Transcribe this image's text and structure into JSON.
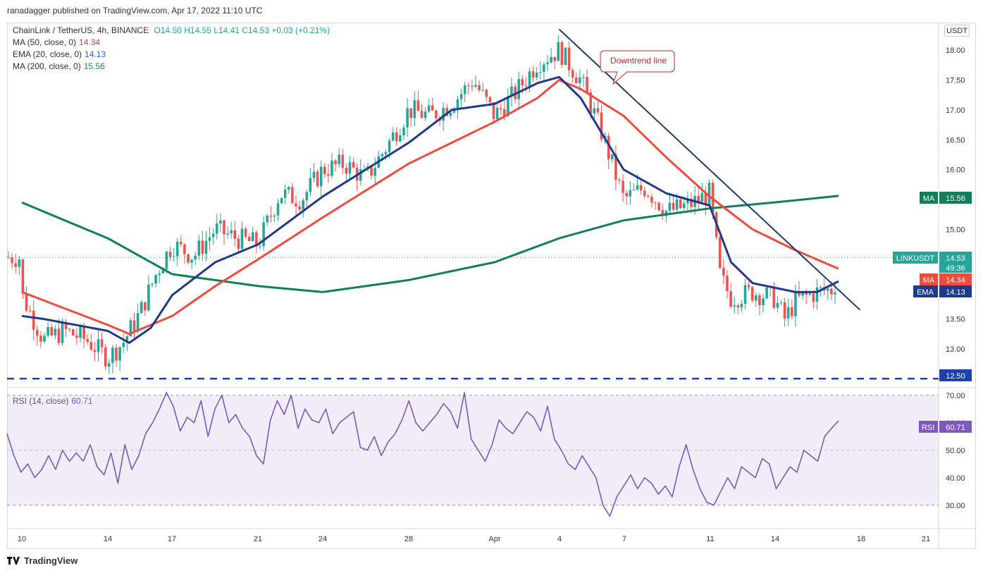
{
  "header": {
    "published": "ranadagger published on TradingView.com, Apr 17, 2022 11:10 UTC",
    "currency_button": "USDT"
  },
  "legend": {
    "symbol": "ChainLink / TetherUS, 4h, BINANCE",
    "ohlc": "O14.50  H14.55  L14.41  C14.53  +0.03 (+0.21%)",
    "ma50_label": "MA (50, close, 0)",
    "ma50_value": "14.34",
    "ema20_label": "EMA (20, close, 0)",
    "ema20_value": "14.13",
    "ma200_label": "MA (200, close, 0)",
    "ma200_value": "15.56",
    "rsi_label": "RSI (14, close)",
    "rsi_value": "60.71"
  },
  "annotation": {
    "text": "Downtrend line"
  },
  "badges": {
    "ma200": {
      "tag": "MA",
      "value": "15.56"
    },
    "price": {
      "tag": "LINKUSDT",
      "value": "14.53",
      "countdown": "49:36"
    },
    "ma50": {
      "tag": "MA",
      "value": "14.34"
    },
    "ema20": {
      "tag": "EMA",
      "value": "14.13"
    },
    "support": {
      "value": "12.50"
    },
    "rsi": {
      "tag": "RSI",
      "value": "60.71"
    }
  },
  "footer": {
    "brand": "TradingView"
  },
  "colors": {
    "up": "#26a69a",
    "down": "#ef5350",
    "ma50": "#ef4b3f",
    "ema20": "#1e3a8a",
    "ma200": "#137f5a",
    "rsi": "#7e57c2",
    "support": "#1e3fae"
  },
  "chart_data": [
    {
      "type": "candlestick",
      "symbol": "LINKUSDT",
      "timeframe": "4h",
      "x_ticks": [
        "10",
        "14",
        "17",
        "21",
        "24",
        "28",
        "Apr",
        "4",
        "7",
        "11",
        "14",
        "18",
        "21"
      ],
      "y_ticks": [
        "13.00",
        "13.50",
        "14.00",
        "14.50",
        "15.00",
        "15.50",
        "16.00",
        "16.50",
        "17.00",
        "17.50",
        "18.00"
      ],
      "ylim": [
        12.35,
        18.45
      ],
      "close_path": [
        [
          "10",
          13.9
        ],
        [
          "11",
          13.15
        ],
        [
          "12",
          13.3
        ],
        [
          "13",
          13.15
        ],
        [
          "14",
          12.85
        ],
        [
          "14.7",
          13.1
        ],
        [
          "15.5",
          13.6
        ],
        [
          "16.3",
          14.3
        ],
        [
          "17",
          14.75
        ],
        [
          "18",
          14.55
        ],
        [
          "19",
          15.0
        ],
        [
          "20",
          14.85
        ],
        [
          "21",
          14.75
        ],
        [
          "22",
          15.6
        ],
        [
          "23",
          15.5
        ],
        [
          "24",
          16.0
        ],
        [
          "25",
          16.1
        ],
        [
          "26",
          15.85
        ],
        [
          "27",
          16.4
        ],
        [
          "28",
          17.0
        ],
        [
          "29",
          16.9
        ],
        [
          "30",
          17.1
        ],
        [
          "31",
          17.5
        ],
        [
          "Apr 1",
          16.9
        ],
        [
          "Apr 2",
          17.3
        ],
        [
          "Apr 3",
          17.8
        ],
        [
          "Apr 4",
          18.0
        ],
        [
          "Apr 5",
          17.5
        ],
        [
          "Apr 6",
          16.6
        ],
        [
          "Apr 7",
          15.5
        ],
        [
          "Apr 8",
          15.7
        ],
        [
          "Apr 9",
          15.3
        ],
        [
          "Apr 10",
          15.4
        ],
        [
          "Apr 11",
          15.6
        ],
        [
          "Apr 11.5",
          14.2
        ],
        [
          "Apr 12",
          13.85
        ],
        [
          "Apr 13",
          13.95
        ],
        [
          "Apr 14",
          13.85
        ],
        [
          "Apr 14.5",
          13.5
        ],
        [
          "Apr 15",
          13.8
        ],
        [
          "Apr 16",
          13.95
        ],
        [
          "Apr 16.8",
          14.0
        ],
        [
          "Apr 17",
          14.53
        ]
      ],
      "ma50_path": [
        [
          "10",
          13.95
        ],
        [
          "14",
          13.4
        ],
        [
          "15",
          13.25
        ],
        [
          "17",
          13.55
        ],
        [
          "19",
          14.05
        ],
        [
          "21",
          14.5
        ],
        [
          "24",
          15.2
        ],
        [
          "28",
          16.1
        ],
        [
          "Apr 1",
          16.8
        ],
        [
          "Apr 3",
          17.2
        ],
        [
          "Apr 4",
          17.5
        ],
        [
          "Apr 5",
          17.35
        ],
        [
          "Apr 7",
          16.9
        ],
        [
          "Apr 9",
          16.2
        ],
        [
          "Apr 11",
          15.55
        ],
        [
          "Apr 13",
          15.0
        ],
        [
          "Apr 15",
          14.65
        ],
        [
          "Apr 17",
          14.34
        ]
      ],
      "ema20_path": [
        [
          "10",
          13.55
        ],
        [
          "11",
          13.5
        ],
        [
          "14",
          13.3
        ],
        [
          "15",
          13.1
        ],
        [
          "16",
          13.35
        ],
        [
          "17",
          13.9
        ],
        [
          "19",
          14.45
        ],
        [
          "21",
          14.75
        ],
        [
          "24",
          15.55
        ],
        [
          "28",
          16.45
        ],
        [
          "30",
          17.0
        ],
        [
          "Apr 1",
          17.1
        ],
        [
          "Apr 3",
          17.45
        ],
        [
          "Apr 4",
          17.55
        ],
        [
          "Apr 5",
          17.2
        ],
        [
          "Apr 7",
          16.0
        ],
        [
          "Apr 9",
          15.6
        ],
        [
          "Apr 11",
          15.4
        ],
        [
          "Apr 12",
          14.45
        ],
        [
          "Apr 13",
          14.1
        ],
        [
          "Apr 15",
          13.95
        ],
        [
          "Apr 16",
          13.95
        ],
        [
          "Apr 17",
          14.13
        ]
      ],
      "ma200_path": [
        [
          "10",
          15.45
        ],
        [
          "14",
          14.85
        ],
        [
          "17",
          14.25
        ],
        [
          "21",
          14.05
        ],
        [
          "24",
          13.95
        ],
        [
          "28",
          14.15
        ],
        [
          "Apr 1",
          14.45
        ],
        [
          "Apr 4",
          14.85
        ],
        [
          "Apr 7",
          15.15
        ],
        [
          "Apr 11",
          15.35
        ],
        [
          "Apr 14",
          15.45
        ],
        [
          "Apr 17",
          15.56
        ]
      ],
      "downtrend_line": [
        [
          "Apr 4",
          18.35
        ],
        [
          "Apr 18",
          13.65
        ]
      ],
      "support_level": 12.5,
      "last_price": 14.53
    },
    {
      "type": "line",
      "name": "RSI (14, close)",
      "x_ticks": [
        "10",
        "14",
        "17",
        "21",
        "24",
        "28",
        "Apr",
        "4",
        "7",
        "11",
        "14",
        "18",
        "21"
      ],
      "y_ticks": [
        "30.00",
        "40.00",
        "50.00",
        "60.00",
        "70.00"
      ],
      "ylim": [
        22,
        72
      ],
      "overbought": 70,
      "oversold": 30,
      "values": [
        56,
        48,
        42,
        45,
        40,
        43,
        48,
        43,
        50,
        46,
        49,
        46,
        52,
        44,
        41,
        49,
        38,
        52,
        43,
        48,
        56,
        60,
        65,
        71,
        66,
        57,
        62,
        60,
        68,
        55,
        65,
        70,
        60,
        63,
        58,
        55,
        48,
        45,
        61,
        68,
        63,
        70,
        58,
        65,
        61,
        60,
        65,
        56,
        60,
        62,
        64,
        51,
        50,
        55,
        48,
        53,
        56,
        61,
        68,
        60,
        57,
        60,
        63,
        67,
        64,
        58,
        71,
        54,
        50,
        46,
        52,
        61,
        58,
        56,
        60,
        64,
        62,
        57,
        66,
        54,
        50,
        45,
        43,
        48,
        44,
        40,
        30,
        26,
        33,
        37,
        41,
        36,
        40,
        38,
        34,
        37,
        33,
        44,
        52,
        43,
        36,
        31,
        30,
        35,
        40,
        36,
        44,
        42,
        40,
        47,
        45,
        36,
        40,
        44,
        42,
        50,
        48,
        46,
        55,
        58,
        60.71
      ]
    }
  ]
}
